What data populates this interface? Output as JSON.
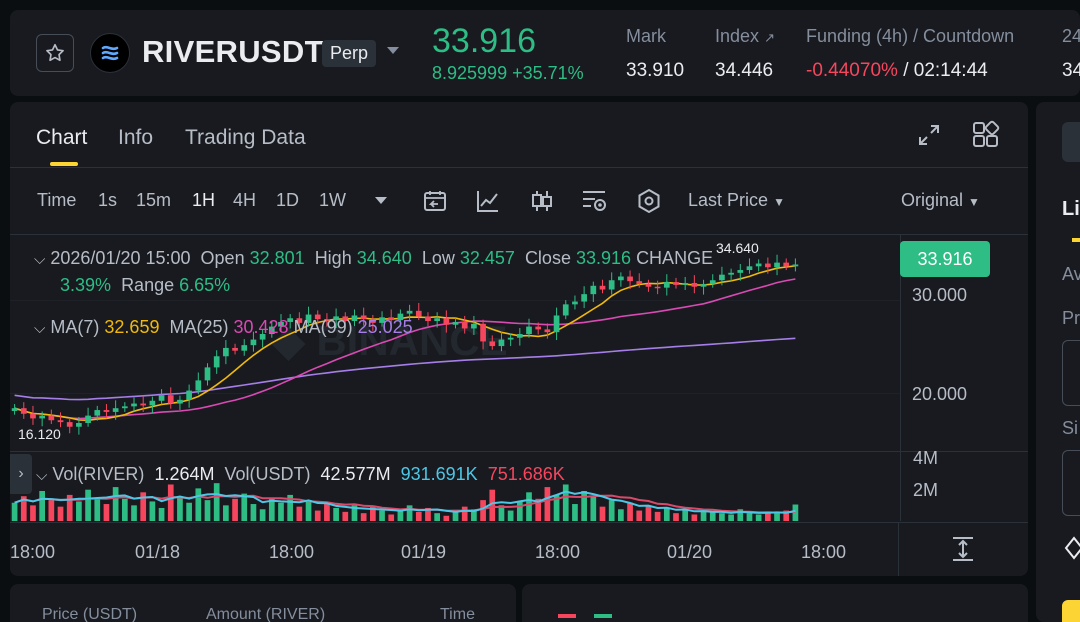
{
  "header": {
    "symbol": "RIVERUSDT",
    "contract_type": "Perp",
    "last_price": "33.916",
    "change_text": "8.925999 +35.71%",
    "mark_label": "Mark",
    "mark_value": "33.910",
    "index_label": "Index",
    "index_value": "34.446",
    "funding_label": "Funding (4h) / Countdown",
    "funding_rate": "-0.44070%",
    "funding_sep": "/",
    "countdown": "02:14:44",
    "cut_label": "24",
    "cut_value": "34"
  },
  "tabs": [
    {
      "label": "Chart"
    },
    {
      "label": "Info"
    },
    {
      "label": "Trading Data"
    }
  ],
  "toolbar": {
    "time_label": "Time",
    "intervals": [
      "1s",
      "15m",
      "1H",
      "4H",
      "1D",
      "1W"
    ],
    "selected_interval": "1H",
    "price_type": "Last Price",
    "view_mode": "Original"
  },
  "legend": {
    "date": "2026/01/20 15:00",
    "open_label": "Open",
    "open": "32.801",
    "high_label": "High",
    "high": "34.640",
    "low_label": "Low",
    "low": "32.457",
    "close_label": "Close",
    "close": "33.916",
    "change_label": "CHANGE",
    "change": "3.39%",
    "range_label": "Range",
    "range": "6.65%",
    "ma7_label": "MA(7)",
    "ma7": "32.659",
    "ma25_label": "MA(25)",
    "ma25": "30.428",
    "ma99_label": "MA(99)",
    "ma99": "25.025"
  },
  "volume_legend": {
    "vol_river_label": "Vol(RIVER)",
    "vol_river": "1.264M",
    "vol_usdt_label": "Vol(USDT)",
    "vol_usdt": "42.577M",
    "ma1": "931.691K",
    "ma2": "751.686K"
  },
  "chart_overlay": {
    "high_marker": "34.640",
    "low_marker": "16.120",
    "current_price_tag": "33.916"
  },
  "price_axis": [
    "30.000",
    "20.000"
  ],
  "volume_axis": [
    "4M",
    "2M"
  ],
  "time_axis": [
    "18:00",
    "01/18",
    "18:00",
    "01/19",
    "18:00",
    "01/20",
    "18:00"
  ],
  "order_book": {
    "price_header": "Price (USDT)",
    "amount_header": "Amount (RIVER)",
    "time_header": "Time"
  },
  "trade_panel": {
    "tab_cut": "Li",
    "field1_cut": "Av",
    "field2_cut": "Pr",
    "field3_cut": "Si"
  },
  "colors": {
    "up": "#2ebd85",
    "down": "#f6465d",
    "ma7": "#f0b90b",
    "ma25": "#d94ab3",
    "ma99": "#a67ee8",
    "accent": "#fcd535"
  },
  "chart_data": {
    "type": "candlestick",
    "interval": "1H",
    "price_range": [
      14,
      36
    ],
    "price_ticks": [
      30,
      20
    ],
    "volume_ticks_millions": [
      4,
      2
    ],
    "closes": [
      18.4,
      17.8,
      17.3,
      17.6,
      17.1,
      16.9,
      16.4,
      16.8,
      17.6,
      18.2,
      18.0,
      18.4,
      18.6,
      18.9,
      18.7,
      19.2,
      19.8,
      18.9,
      19.3,
      20.3,
      21.4,
      22.8,
      24.0,
      24.9,
      24.6,
      25.2,
      25.8,
      26.4,
      27.2,
      27.7,
      28.1,
      27.6,
      28.5,
      28.0,
      27.9,
      28.3,
      27.8,
      28.4,
      28.0,
      27.6,
      28.2,
      27.9,
      28.6,
      28.9,
      28.3,
      27.8,
      28.1,
      27.4,
      27.7,
      27.0,
      27.5,
      25.6,
      25.1,
      25.8,
      26.0,
      26.4,
      27.2,
      26.9,
      26.6,
      28.4,
      29.6,
      29.9,
      30.7,
      31.6,
      31.2,
      32.2,
      32.6,
      32.1,
      31.8,
      31.5,
      31.4,
      32.0,
      31.7,
      31.9,
      31.5,
      31.8,
      32.2,
      32.8,
      33.0,
      33.3,
      33.7,
      34.0,
      33.6,
      34.1,
      33.7,
      33.9
    ],
    "volumes_millions": [
      1.4,
      1.9,
      1.2,
      2.3,
      1.6,
      1.1,
      2.0,
      1.5,
      2.4,
      1.8,
      1.3,
      2.6,
      1.7,
      1.2,
      2.2,
      1.5,
      1.0,
      2.8,
      1.9,
      1.4,
      2.5,
      1.6,
      2.9,
      1.2,
      1.7,
      2.1,
      1.3,
      0.9,
      1.8,
      1.4,
      2.0,
      1.1,
      1.6,
      0.8,
      1.3,
      1.0,
      0.7,
      1.2,
      0.6,
      1.1,
      0.8,
      0.5,
      0.9,
      1.2,
      0.7,
      1.0,
      0.6,
      0.4,
      0.8,
      1.1,
      0.9,
      1.6,
      2.4,
      1.2,
      0.8,
      1.5,
      2.2,
      1.7,
      2.6,
      2.0,
      2.8,
      1.3,
      2.3,
      1.9,
      1.1,
      1.6,
      0.9,
      1.4,
      0.8,
      1.2,
      0.7,
      1.0,
      0.6,
      0.9,
      0.5,
      0.8,
      0.7,
      0.6,
      0.5,
      0.9,
      0.6,
      0.5,
      0.7,
      0.6,
      0.8,
      1.264
    ]
  }
}
